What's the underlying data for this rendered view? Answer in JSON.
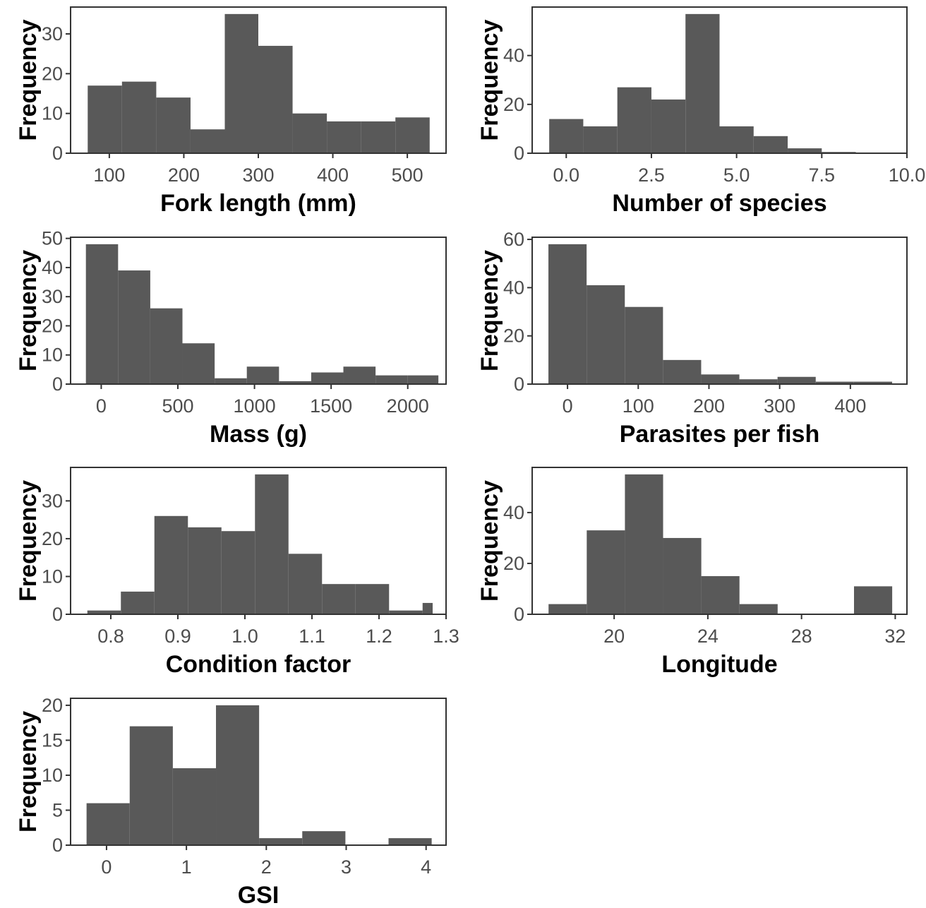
{
  "figure": {
    "panel_count": 7,
    "layout": "4 rows x 2 columns"
  },
  "chart_data": [
    {
      "type": "bar",
      "subtype": "histogram",
      "xlabel": "Fork length (mm)",
      "ylabel": "Frequency",
      "xlim": [
        48,
        552
      ],
      "ylim": [
        0,
        36.75
      ],
      "x_ticks": [
        100,
        200,
        300,
        400,
        500
      ],
      "x_tick_labels": [
        "100",
        "200",
        "300",
        "400",
        "500"
      ],
      "y_ticks": [
        0,
        10,
        20,
        30
      ],
      "y_tick_labels": [
        "0",
        "10",
        "20",
        "30"
      ],
      "bins": [
        {
          "x0": 71,
          "x1": 117,
          "count": 17
        },
        {
          "x0": 117,
          "x1": 163,
          "count": 18
        },
        {
          "x0": 163,
          "x1": 209,
          "count": 14
        },
        {
          "x0": 209,
          "x1": 255,
          "count": 6
        },
        {
          "x0": 255,
          "x1": 300,
          "count": 35
        },
        {
          "x0": 300,
          "x1": 346,
          "count": 27
        },
        {
          "x0": 346,
          "x1": 392,
          "count": 10
        },
        {
          "x0": 392,
          "x1": 438,
          "count": 8
        },
        {
          "x0": 438,
          "x1": 484,
          "count": 8
        },
        {
          "x0": 484,
          "x1": 530,
          "count": 9
        }
      ],
      "color": "#595959",
      "grid": false
    },
    {
      "type": "bar",
      "subtype": "histogram",
      "xlabel": "Number of species",
      "ylabel": "Frequency",
      "xlim": [
        -1,
        10
      ],
      "ylim": [
        0,
        59.85
      ],
      "x_ticks": [
        0,
        2.5,
        5,
        7.5,
        10
      ],
      "x_tick_labels": [
        "0.0",
        "2.5",
        "5.0",
        "7.5",
        "10.0"
      ],
      "y_ticks": [
        0,
        20,
        40
      ],
      "y_tick_labels": [
        "0",
        "20",
        "40"
      ],
      "bins": [
        {
          "x0": -0.5,
          "x1": 0.5,
          "count": 14
        },
        {
          "x0": 0.5,
          "x1": 1.5,
          "count": 11
        },
        {
          "x0": 1.5,
          "x1": 2.5,
          "count": 27
        },
        {
          "x0": 2.5,
          "x1": 3.5,
          "count": 22
        },
        {
          "x0": 3.5,
          "x1": 4.5,
          "count": 57
        },
        {
          "x0": 4.5,
          "x1": 5.5,
          "count": 11
        },
        {
          "x0": 5.5,
          "x1": 6.5,
          "count": 7
        },
        {
          "x0": 6.5,
          "x1": 7.5,
          "count": 2
        },
        {
          "x0": 7.5,
          "x1": 8.5,
          "count": 0.5
        }
      ],
      "color": "#595959",
      "grid": false
    },
    {
      "type": "bar",
      "subtype": "histogram",
      "xlabel": "Mass (g)",
      "ylabel": "Frequency",
      "xlim": [
        -200,
        2250
      ],
      "ylim": [
        0,
        50.4
      ],
      "x_ticks": [
        0,
        500,
        1000,
        1500,
        2000
      ],
      "x_tick_labels": [
        "0",
        "500",
        "1000",
        "1500",
        "2000"
      ],
      "y_ticks": [
        0,
        10,
        20,
        30,
        40,
        50
      ],
      "y_tick_labels": [
        "0",
        "10",
        "20",
        "30",
        "40",
        "50"
      ],
      "bins": [
        {
          "x0": -100,
          "x1": 110,
          "count": 48
        },
        {
          "x0": 110,
          "x1": 320,
          "count": 39
        },
        {
          "x0": 320,
          "x1": 530,
          "count": 26
        },
        {
          "x0": 530,
          "x1": 740,
          "count": 14
        },
        {
          "x0": 740,
          "x1": 950,
          "count": 2
        },
        {
          "x0": 950,
          "x1": 1160,
          "count": 6
        },
        {
          "x0": 1160,
          "x1": 1370,
          "count": 1
        },
        {
          "x0": 1370,
          "x1": 1580,
          "count": 4
        },
        {
          "x0": 1580,
          "x1": 1790,
          "count": 6
        },
        {
          "x0": 1790,
          "x1": 2000,
          "count": 3
        },
        {
          "x0": 2000,
          "x1": 2200,
          "count": 3
        }
      ],
      "color": "#595959",
      "grid": false
    },
    {
      "type": "bar",
      "subtype": "histogram",
      "xlabel": "Parasites per fish",
      "ylabel": "Frequency",
      "xlim": [
        -50,
        480
      ],
      "ylim": [
        0,
        60.9
      ],
      "x_ticks": [
        0,
        100,
        200,
        300,
        400
      ],
      "x_tick_labels": [
        "0",
        "100",
        "200",
        "300",
        "400"
      ],
      "y_ticks": [
        0,
        20,
        40,
        60
      ],
      "y_tick_labels": [
        "0",
        "20",
        "40",
        "60"
      ],
      "bins": [
        {
          "x0": -27,
          "x1": 27,
          "count": 58
        },
        {
          "x0": 27,
          "x1": 81,
          "count": 41
        },
        {
          "x0": 81,
          "x1": 135,
          "count": 32
        },
        {
          "x0": 135,
          "x1": 189,
          "count": 10
        },
        {
          "x0": 189,
          "x1": 243,
          "count": 4
        },
        {
          "x0": 243,
          "x1": 297,
          "count": 2
        },
        {
          "x0": 297,
          "x1": 351,
          "count": 3
        },
        {
          "x0": 351,
          "x1": 405,
          "count": 1
        },
        {
          "x0": 405,
          "x1": 459,
          "count": 1
        }
      ],
      "color": "#595959",
      "grid": false
    },
    {
      "type": "bar",
      "subtype": "histogram",
      "xlabel": "Condition factor",
      "ylabel": "Frequency",
      "xlim": [
        0.74,
        1.3
      ],
      "ylim": [
        0,
        38.85
      ],
      "x_ticks": [
        0.8,
        0.9,
        1.0,
        1.1,
        1.2,
        1.3
      ],
      "x_tick_labels": [
        "0.8",
        "0.9",
        "1.0",
        "1.1",
        "1.2",
        "1.3"
      ],
      "y_ticks": [
        0,
        10,
        20,
        30
      ],
      "y_tick_labels": [
        "0",
        "10",
        "20",
        "30"
      ],
      "bins": [
        {
          "x0": 0.765,
          "x1": 0.815,
          "count": 1
        },
        {
          "x0": 0.815,
          "x1": 0.865,
          "count": 6
        },
        {
          "x0": 0.865,
          "x1": 0.915,
          "count": 26
        },
        {
          "x0": 0.915,
          "x1": 0.965,
          "count": 23
        },
        {
          "x0": 0.965,
          "x1": 1.015,
          "count": 22
        },
        {
          "x0": 1.015,
          "x1": 1.065,
          "count": 37
        },
        {
          "x0": 1.065,
          "x1": 1.115,
          "count": 16
        },
        {
          "x0": 1.115,
          "x1": 1.165,
          "count": 8
        },
        {
          "x0": 1.165,
          "x1": 1.215,
          "count": 8
        },
        {
          "x0": 1.215,
          "x1": 1.265,
          "count": 1
        },
        {
          "x0": 1.265,
          "x1": 1.28,
          "count": 3
        }
      ],
      "color": "#595959",
      "grid": false
    },
    {
      "type": "bar",
      "subtype": "histogram",
      "xlabel": "Longitude",
      "ylabel": "Frequency",
      "xlim": [
        16.5,
        32.5
      ],
      "ylim": [
        0,
        57.75
      ],
      "x_ticks": [
        20,
        24,
        28,
        32
      ],
      "x_tick_labels": [
        "20",
        "24",
        "28",
        "32"
      ],
      "y_ticks": [
        0,
        20,
        40
      ],
      "y_tick_labels": [
        "0",
        "20",
        "40"
      ],
      "bins": [
        {
          "x0": 17.2,
          "x1": 18.83,
          "count": 4
        },
        {
          "x0": 18.83,
          "x1": 20.46,
          "count": 33
        },
        {
          "x0": 20.46,
          "x1": 22.09,
          "count": 55
        },
        {
          "x0": 22.09,
          "x1": 23.72,
          "count": 30
        },
        {
          "x0": 23.72,
          "x1": 25.35,
          "count": 15
        },
        {
          "x0": 25.35,
          "x1": 26.98,
          "count": 4
        },
        {
          "x0": 26.98,
          "x1": 28.61,
          "count": 0
        },
        {
          "x0": 28.61,
          "x1": 30.24,
          "count": 0
        },
        {
          "x0": 30.24,
          "x1": 31.87,
          "count": 11
        }
      ],
      "color": "#595959",
      "grid": false
    },
    {
      "type": "bar",
      "subtype": "histogram",
      "xlabel": "GSI",
      "ylabel": "Frequency",
      "xlim": [
        -0.45,
        4.25
      ],
      "ylim": [
        0,
        21
      ],
      "x_ticks": [
        0,
        1,
        2,
        3,
        4
      ],
      "x_tick_labels": [
        "0",
        "1",
        "2",
        "3",
        "4"
      ],
      "y_ticks": [
        0,
        5,
        10,
        15,
        20
      ],
      "y_tick_labels": [
        "0",
        "5",
        "10",
        "15",
        "20"
      ],
      "bins": [
        {
          "x0": -0.25,
          "x1": 0.29,
          "count": 6
        },
        {
          "x0": 0.29,
          "x1": 0.83,
          "count": 17
        },
        {
          "x0": 0.83,
          "x1": 1.37,
          "count": 11
        },
        {
          "x0": 1.37,
          "x1": 1.91,
          "count": 20
        },
        {
          "x0": 1.91,
          "x1": 2.45,
          "count": 1
        },
        {
          "x0": 2.45,
          "x1": 2.99,
          "count": 2
        },
        {
          "x0": 2.99,
          "x1": 3.53,
          "count": 0
        },
        {
          "x0": 3.53,
          "x1": 4.07,
          "count": 1
        }
      ],
      "color": "#595959",
      "grid": false
    }
  ]
}
